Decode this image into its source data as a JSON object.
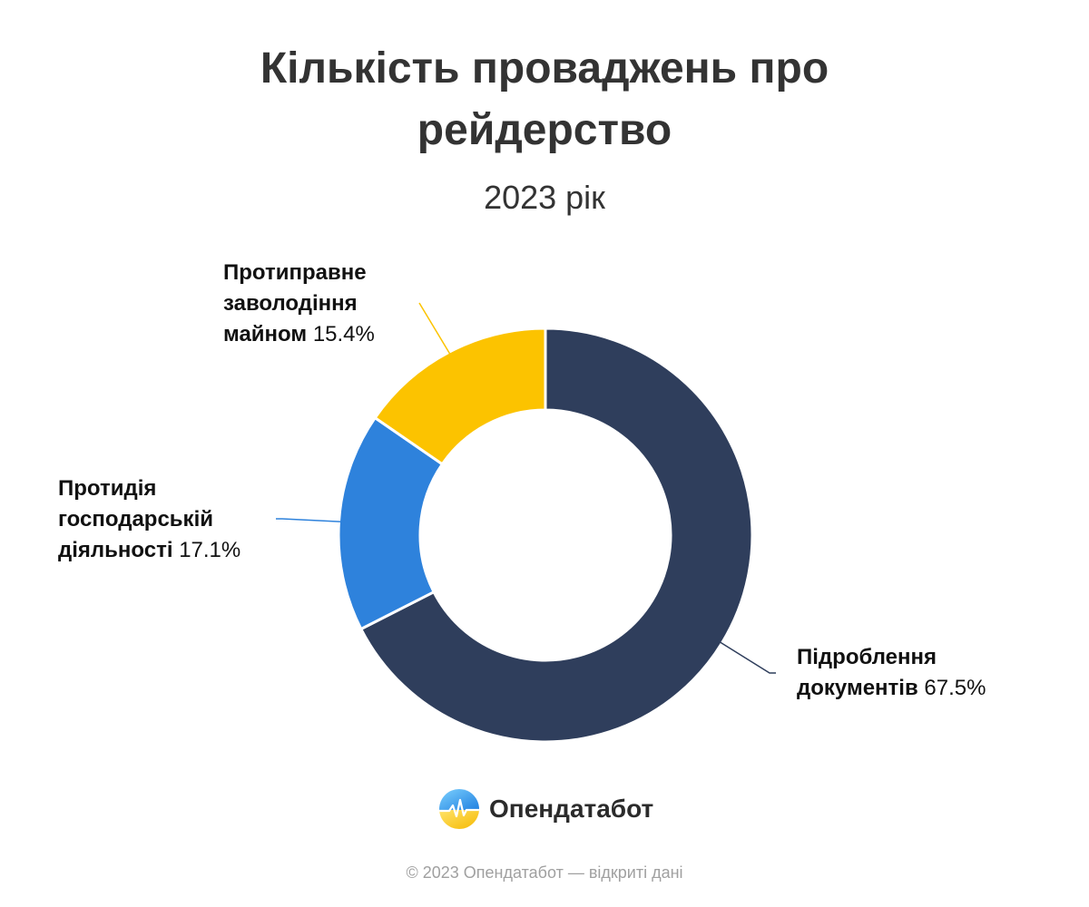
{
  "title_lines": [
    "Кількість проваджень про",
    "рейдерство"
  ],
  "subtitle": "2023 рік",
  "chart_data": {
    "type": "pie",
    "title": "Кількість проваджень про рейдерство",
    "subtitle": "2023 рік",
    "donut": true,
    "unit": "%",
    "slices": [
      {
        "label": "Підроблення документів",
        "label_lines": [
          "Підроблення",
          "документів"
        ],
        "value": 67.5,
        "value_text": "67.5%",
        "color": "#2f3e5c"
      },
      {
        "label": "Протидія господарській діяльності",
        "label_lines": [
          "Протидія",
          "господарській",
          "діяльності"
        ],
        "value": 17.1,
        "value_text": "17.1%",
        "color": "#2e82dc"
      },
      {
        "label": "Протиправне заволодіння майном",
        "label_lines": [
          "Протиправне",
          "заволодіння",
          "майном"
        ],
        "value": 15.4,
        "value_text": "15.4%",
        "color": "#fcc300"
      }
    ]
  },
  "logo": {
    "text": "Опендатабот",
    "icon": "opendatabot-logo-icon"
  },
  "footer": "© 2023 Опендатабот — відкриті дані"
}
